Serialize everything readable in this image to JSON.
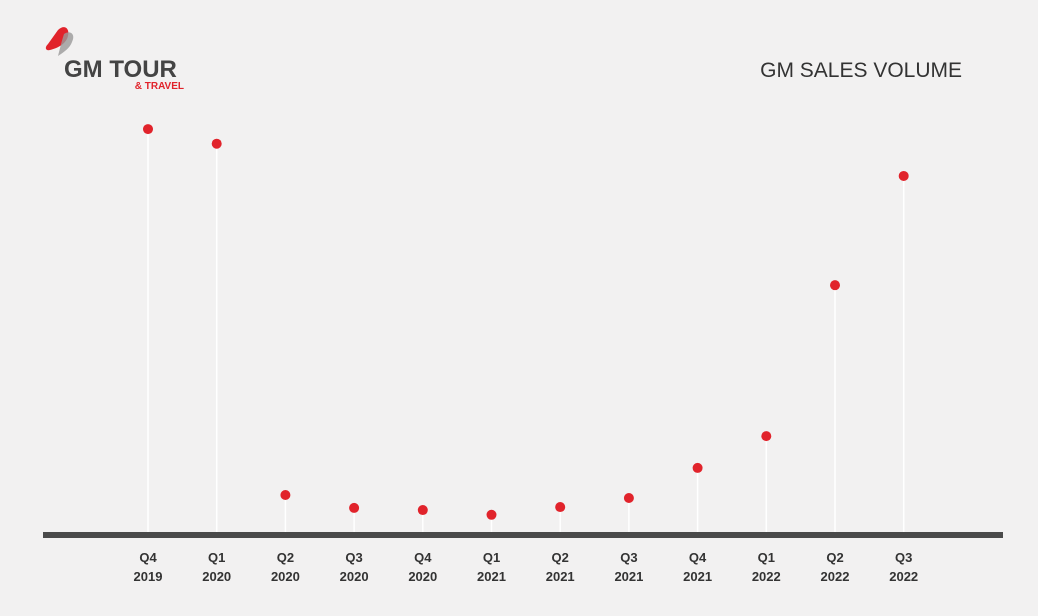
{
  "logo": {
    "name": "GM TOUR",
    "tagline": "& TRAVEL"
  },
  "chart_data": {
    "type": "line",
    "title": "GM SALES VOLUME",
    "categories": [
      [
        "Q4",
        "2019"
      ],
      [
        "Q1",
        "2020"
      ],
      [
        "Q2",
        "2020"
      ],
      [
        "Q3",
        "2020"
      ],
      [
        "Q4",
        "2020"
      ],
      [
        "Q1",
        "2021"
      ],
      [
        "Q2",
        "2021"
      ],
      [
        "Q3",
        "2021"
      ],
      [
        "Q4",
        "2021"
      ],
      [
        "Q1",
        "2022"
      ],
      [
        "Q2",
        "2022"
      ],
      [
        "Q3",
        "2022"
      ]
    ],
    "values": [
      94.4,
      91,
      9.3,
      6.3,
      5.8,
      4.7,
      6.5,
      8.6,
      15.6,
      23,
      58.1,
      83.5
    ],
    "color": "#e1232b",
    "ylim": [
      0,
      100
    ]
  }
}
